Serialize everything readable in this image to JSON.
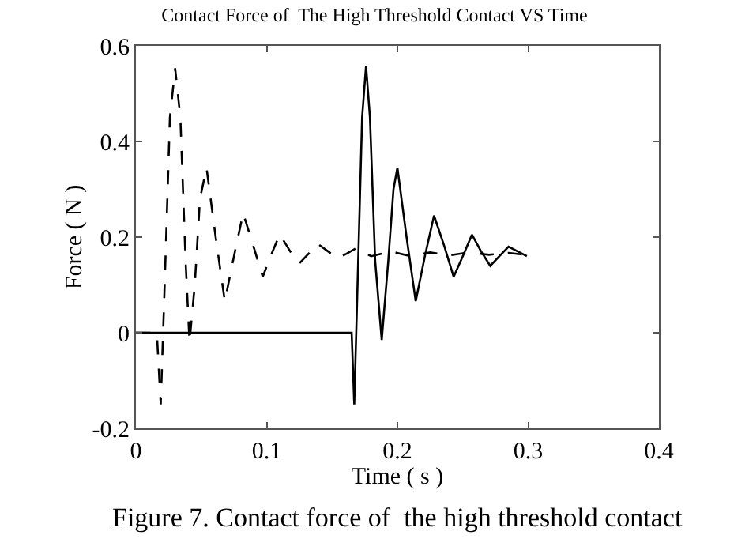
{
  "chart_data": {
    "type": "line",
    "title": "Contact Force of  The High Threshold Contact VS Time",
    "xlabel": "Time ( s )",
    "ylabel": "Force ( N )",
    "annotations": [
      "Figure 7. Contact force of  the high threshold contact"
    ],
    "xlim": [
      0,
      0.4
    ],
    "ylim": [
      -0.2,
      0.6
    ],
    "xticks": [
      0,
      0.1,
      0.2,
      0.3,
      0.4
    ],
    "yticks": [
      -0.2,
      0,
      0.2,
      0.4,
      0.6
    ],
    "marker": "none",
    "series": [
      {
        "color": "#000000",
        "line_style": "dashed",
        "x": [
          0,
          0.016,
          0.019,
          0.022,
          0.026,
          0.03,
          0.034,
          0.038,
          0.041,
          0.045,
          0.049,
          0.054,
          0.061,
          0.068,
          0.075,
          0.082,
          0.09,
          0.097,
          0.103,
          0.11,
          0.118,
          0.125,
          0.132,
          0.139,
          0.147,
          0.154,
          0.161,
          0.168,
          0.18,
          0.195,
          0.21,
          0.225,
          0.24,
          0.255,
          0.27,
          0.285,
          0.3
        ],
        "values": [
          0,
          0,
          -0.15,
          0.1,
          0.45,
          0.553,
          0.45,
          0.15,
          -0.02,
          0.1,
          0.28,
          0.345,
          0.2,
          0.066,
          0.16,
          0.25,
          0.18,
          0.117,
          0.16,
          0.206,
          0.17,
          0.145,
          0.165,
          0.186,
          0.17,
          0.156,
          0.165,
          0.176,
          0.16,
          0.17,
          0.16,
          0.168,
          0.162,
          0.168,
          0.163,
          0.167,
          0.162
        ]
      },
      {
        "color": "#000000",
        "line_style": "solid",
        "x": [
          0,
          0.165,
          0.167,
          0.17,
          0.173,
          0.176,
          0.179,
          0.183,
          0.188,
          0.193,
          0.197,
          0.2,
          0.207,
          0.214,
          0.221,
          0.228,
          0.236,
          0.243,
          0.25,
          0.257,
          0.264,
          0.271,
          0.278,
          0.285,
          0.292,
          0.299
        ],
        "values": [
          0,
          0,
          -0.15,
          0.15,
          0.45,
          0.558,
          0.45,
          0.15,
          -0.015,
          0.15,
          0.3,
          0.345,
          0.2,
          0.066,
          0.16,
          0.245,
          0.18,
          0.117,
          0.16,
          0.205,
          0.17,
          0.14,
          0.16,
          0.18,
          0.17,
          0.16
        ]
      }
    ]
  }
}
